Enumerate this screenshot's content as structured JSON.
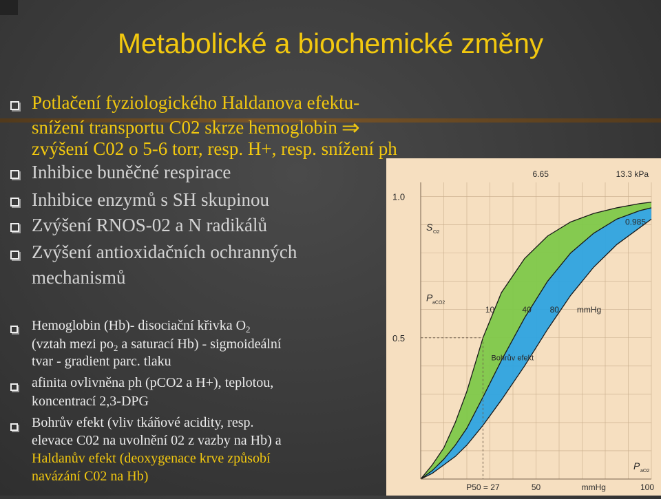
{
  "slide": {
    "title": "Metabolické a biochemické změny",
    "bullets_top": [
      {
        "lines": [
          "Potlačení fyziologického Haldanova efektu-",
          "snížení transportu C02 skrze hemoglobin",
          "zvýšení C02 o 5-6 torr, resp. H+, resp. snížení ph"
        ],
        "arrow": "⇒"
      },
      {
        "lines": [
          "Inhibice buněčné respirace"
        ]
      },
      {
        "lines": [
          "Inhibice enzymů s SH skupinou"
        ]
      },
      {
        "lines": [
          "Zvýšení RNOS-02 a N radikálů"
        ]
      },
      {
        "lines": [
          "Zvýšení antioxidačních ochranných",
          "mechanismů"
        ]
      }
    ],
    "bullets_bottom": [
      {
        "line1_a": "Hemoglobin (Hb)- disociační křivka O",
        "line1_sub": "2",
        "line2_a": "(vztah mezi po",
        "line2_sub": "2",
        "line2_b": " a saturací Hb)  - sigmoideální",
        "line3": "tvar - gradient parc. tlaku"
      },
      {
        "lines": [
          "afinita ovlivněna  ph (pCO2 a H+),  teplotou,",
          "koncentrací 2,3-DPG"
        ]
      },
      {
        "lines": [
          "Bohrův  efekt (vliv tkáňové acidity, resp.",
          "elevace C02 na uvolnění 02 z vazby na Hb) a"
        ],
        "yellow_lines": [
          "Haldanův efekt (deoxygenace krve způsobí",
          "navázání C02 na Hb)"
        ]
      }
    ]
  },
  "chart_data": {
    "type": "line",
    "title": "",
    "y_ticks": [
      "1.0",
      "0.5"
    ],
    "x_ticks": [
      "P50 = 27",
      "50",
      "mmHg",
      "100"
    ],
    "top_labels": [
      "6.65",
      "13.3 kPa"
    ],
    "right_label": "0.985",
    "y_axis_label": "S",
    "y_axis_label_sub": "O2",
    "inner_axis_label": "P",
    "inner_axis_label_sub": "aCO2",
    "inner_ticks": [
      "10",
      "40",
      "80",
      "mmHg"
    ],
    "annotation": "Bohrův efekt",
    "x_axis_label": "P",
    "x_axis_label_sub": "aO2",
    "ylim": [
      0,
      1.05
    ],
    "xlim": [
      0,
      100
    ],
    "series": [
      {
        "x": [
          0,
          5,
          10,
          15,
          20,
          27,
          35,
          45,
          55,
          65,
          75,
          85,
          95,
          100
        ],
        "y": [
          0,
          0.05,
          0.11,
          0.2,
          0.31,
          0.5,
          0.66,
          0.78,
          0.86,
          0.91,
          0.94,
          0.96,
          0.975,
          0.98
        ]
      },
      {
        "x": [
          0,
          5,
          10,
          15,
          20,
          27,
          35,
          45,
          55,
          65,
          75,
          85,
          95,
          100
        ],
        "y": [
          0,
          0.03,
          0.07,
          0.12,
          0.18,
          0.29,
          0.42,
          0.57,
          0.7,
          0.8,
          0.87,
          0.92,
          0.95,
          0.96
        ]
      },
      {
        "x": [
          0,
          5,
          10,
          15,
          20,
          27,
          35,
          45,
          55,
          65,
          75,
          85,
          95,
          100
        ],
        "y": [
          0,
          0.02,
          0.05,
          0.08,
          0.12,
          0.19,
          0.28,
          0.4,
          0.53,
          0.65,
          0.75,
          0.83,
          0.89,
          0.92
        ]
      }
    ],
    "colors": {
      "background": "#f6dfc0",
      "green_band": "#7ec84a",
      "blue_band": "#2ea3e0",
      "curve": "#1a1a1a",
      "grid": "#c8ad8c",
      "text": "#2a2a2a"
    }
  }
}
